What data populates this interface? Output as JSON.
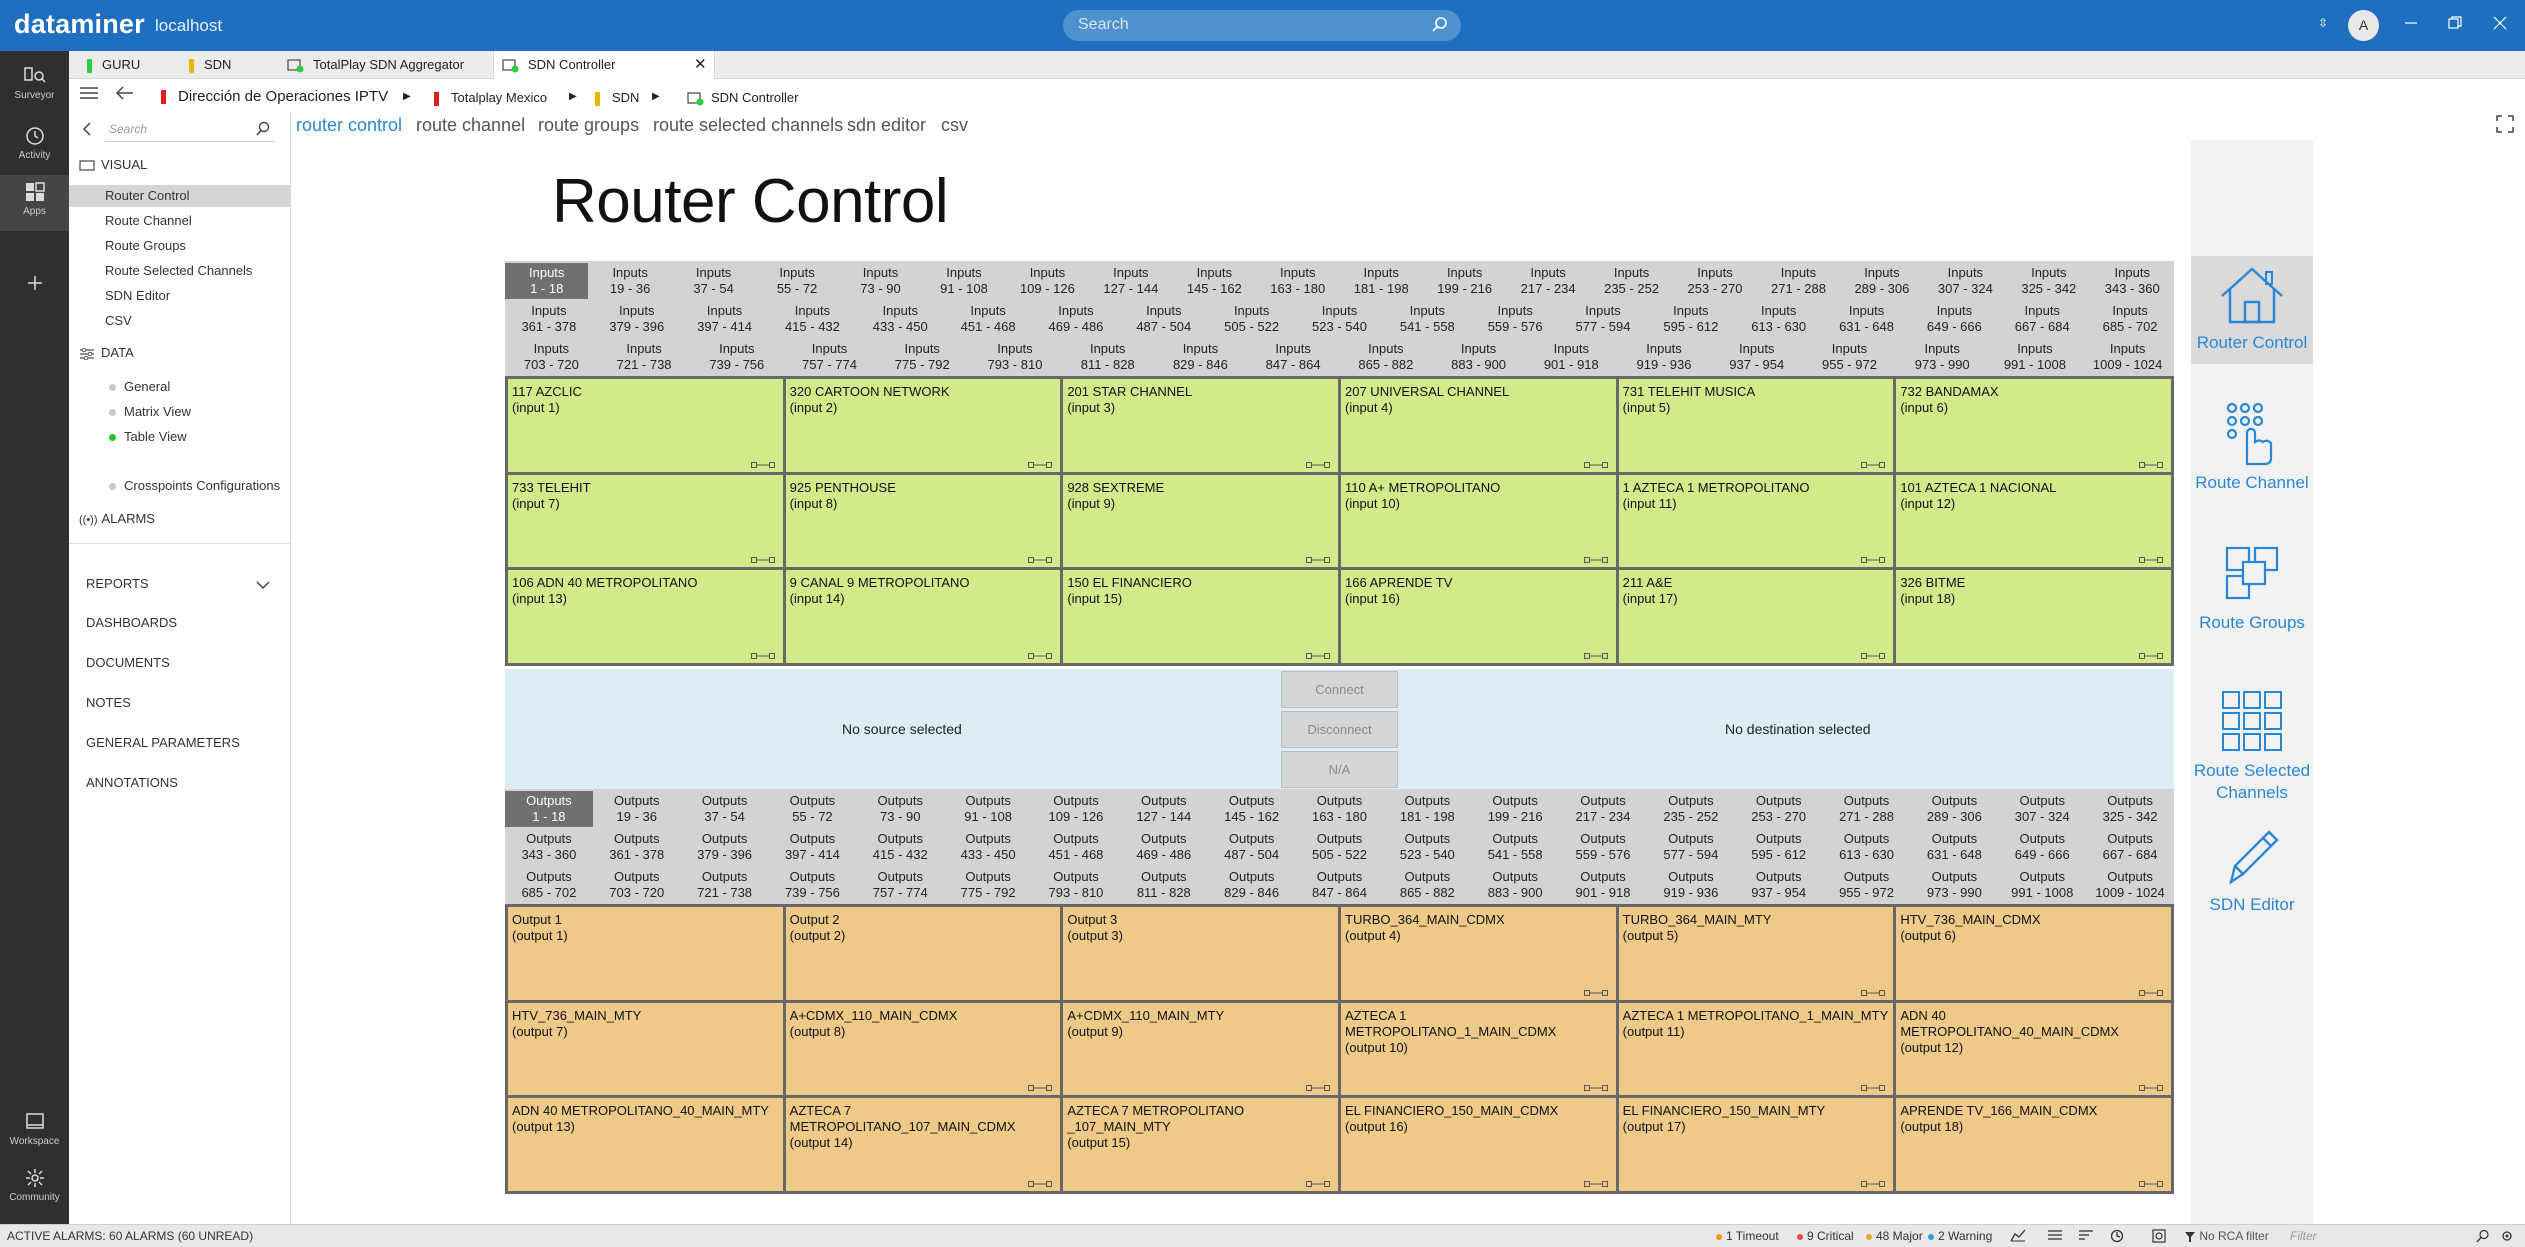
{
  "app": {
    "brand": "dataminer",
    "host": "localhost",
    "search_placeholder": "Search",
    "user_initial": "A"
  },
  "rail": {
    "items": [
      {
        "label": "Surveyor",
        "icon": "surveyor-icon"
      },
      {
        "label": "Activity",
        "icon": "activity-icon"
      },
      {
        "label": "Apps",
        "icon": "apps-icon"
      },
      {
        "label": "",
        "icon": "plus-icon"
      },
      {
        "label": "Workspace",
        "icon": "workspace-icon"
      },
      {
        "label": "Community",
        "icon": "community-icon"
      }
    ]
  },
  "tabs": [
    {
      "label": "GURU",
      "color": "#2ecc40"
    },
    {
      "label": "SDN",
      "color": "#e7b800"
    },
    {
      "label": "TotalPlay SDN Aggregator",
      "color": "#2ecc40"
    },
    {
      "label": "SDN Controller",
      "color": "#2ecc40",
      "active": true
    }
  ],
  "breadcrumb": [
    {
      "label": "Dirección de Operaciones IPTV",
      "color": "#d9231b"
    },
    {
      "label": "Totalplay Mexico",
      "color": "#d9231b"
    },
    {
      "label": "SDN",
      "color": "#e7b800"
    },
    {
      "label": "SDN Controller",
      "color": ""
    }
  ],
  "sidebar": {
    "search_placeholder": "Search",
    "visual_label": "VISUAL",
    "visual_items": [
      "Router Control",
      "Route Channel",
      "Route Groups",
      "Route Selected Channels",
      "SDN Editor",
      "CSV"
    ],
    "data_label": "DATA",
    "data_items": [
      "General",
      "Matrix View",
      "Table View",
      "Crosspoints Configurations"
    ],
    "alarms_label": "ALARMS",
    "sections": [
      "REPORTS",
      "DASHBOARDS",
      "DOCUMENTS",
      "NOTES",
      "GENERAL PARAMETERS",
      "ANNOTATIONS"
    ]
  },
  "page_tabs": [
    "router control",
    "route channel",
    "route groups",
    "route selected channels",
    "sdn editor",
    "csv"
  ],
  "title": "Router Control",
  "input_ranges": [
    [
      "1 - 18",
      "19 - 36",
      "37 - 54",
      "55 - 72",
      "73 - 90",
      "91 - 108",
      "109 - 126",
      "127 - 144",
      "145 - 162",
      "163 - 180",
      "181 - 198",
      "199 - 216",
      "217 - 234",
      "235 - 252",
      "253 - 270",
      "271 - 288",
      "289 - 306",
      "307 - 324",
      "325 - 342",
      "343 - 360"
    ],
    [
      "361 - 378",
      "379 - 396",
      "397 - 414",
      "415 - 432",
      "433 - 450",
      "451 - 468",
      "469 - 486",
      "487 - 504",
      "505 - 522",
      "523 - 540",
      "541 - 558",
      "559 - 576",
      "577 - 594",
      "595 - 612",
      "613 - 630",
      "631 - 648",
      "649 - 666",
      "667 - 684",
      "685 - 702"
    ],
    [
      "703 - 720",
      "721 - 738",
      "739 - 756",
      "757 - 774",
      "775 - 792",
      "793 - 810",
      "811 - 828",
      "829 - 846",
      "847 - 864",
      "865 - 882",
      "883 - 900",
      "901 - 918",
      "919 - 936",
      "937 - 954",
      "955 - 972",
      "973 - 990",
      "991 - 1008",
      "1009 - 1024"
    ]
  ],
  "output_ranges": [
    [
      "1 - 18",
      "19 - 36",
      "37 - 54",
      "55 - 72",
      "73 - 90",
      "91 - 108",
      "109 - 126",
      "127 - 144",
      "145 - 162",
      "163 - 180",
      "181 - 198",
      "199 - 216",
      "217 - 234",
      "235 - 252",
      "253 - 270",
      "271 - 288",
      "289 - 306",
      "307 - 324",
      "325 - 342"
    ],
    [
      "343 - 360",
      "361 - 378",
      "379 - 396",
      "397 - 414",
      "415 - 432",
      "433 - 450",
      "451 - 468",
      "469 - 486",
      "487 - 504",
      "505 - 522",
      "523 - 540",
      "541 - 558",
      "559 - 576",
      "577 - 594",
      "595 - 612",
      "613 - 630",
      "631 - 648",
      "649 - 666",
      "667 - 684"
    ],
    [
      "685 - 702",
      "703 - 720",
      "721 - 738",
      "739 - 756",
      "757 - 774",
      "775 - 792",
      "793 - 810",
      "811 - 828",
      "829 - 846",
      "847 - 864",
      "865 - 882",
      "883 - 900",
      "901 - 918",
      "919 - 936",
      "937 - 954",
      "955 - 972",
      "973 - 990",
      "991 - 1008",
      "1009 - 1024"
    ]
  ],
  "inputs_label": "Inputs",
  "outputs_label": "Outputs",
  "inputs": [
    {
      "name": "117 AZCLIC",
      "sub": "(input 1)"
    },
    {
      "name": "320 CARTOON NETWORK",
      "sub": "(input 2)"
    },
    {
      "name": "201 STAR CHANNEL",
      "sub": "(input 3)"
    },
    {
      "name": "207 UNIVERSAL CHANNEL",
      "sub": "(input 4)"
    },
    {
      "name": "731 TELEHIT MUSICA",
      "sub": "(input 5)"
    },
    {
      "name": "732 BANDAMAX",
      "sub": "(input 6)"
    },
    {
      "name": "733 TELEHIT",
      "sub": "(input 7)"
    },
    {
      "name": "925 PENTHOUSE",
      "sub": "(input 8)"
    },
    {
      "name": "928 SEXTREME",
      "sub": "(input 9)"
    },
    {
      "name": "110 A+ METROPOLITANO",
      "sub": "(input 10)"
    },
    {
      "name": "1 AZTECA 1 METROPOLITANO",
      "sub": "(input 11)"
    },
    {
      "name": "101 AZTECA 1 NACIONAL",
      "sub": "(input 12)"
    },
    {
      "name": "106 ADN 40 METROPOLITANO",
      "sub": "(input 13)"
    },
    {
      "name": "9 CANAL 9 METROPOLITANO",
      "sub": "(input 14)"
    },
    {
      "name": "150 EL FINANCIERO",
      "sub": "(input 15)"
    },
    {
      "name": "166 APRENDE TV",
      "sub": "(input 16)"
    },
    {
      "name": "211 A&E",
      "sub": "(input 17)"
    },
    {
      "name": "326 BITME",
      "sub": "(input 18)"
    }
  ],
  "selection": {
    "source": "No source selected",
    "destination": "No destination selected",
    "connect": "Connect",
    "disconnect": "Disconnect",
    "na": "N/A"
  },
  "outputs": [
    {
      "name": "Output 1",
      "sub": "(output 1)",
      "conn": false
    },
    {
      "name": "Output 2",
      "sub": "(output 2)",
      "conn": false
    },
    {
      "name": "Output 3",
      "sub": "(output 3)",
      "conn": false
    },
    {
      "name": "TURBO_364_MAIN_CDMX",
      "sub": "(output 4)",
      "conn": true
    },
    {
      "name": "TURBO_364_MAIN_MTY",
      "sub": "(output 5)",
      "conn": true
    },
    {
      "name": "HTV_736_MAIN_CDMX",
      "sub": "(output 6)",
      "conn": true
    },
    {
      "name": "HTV_736_MAIN_MTY",
      "sub": "(output 7)",
      "conn": false
    },
    {
      "name": "A+CDMX_110_MAIN_CDMX",
      "sub": "(output 8)",
      "conn": true
    },
    {
      "name": "A+CDMX_110_MAIN_MTY",
      "sub": "(output 9)",
      "conn": true
    },
    {
      "name": "AZTECA 1 METROPOLITANO_1_MAIN_CDMX",
      "sub": "(output 10)",
      "conn": true
    },
    {
      "name": "AZTECA 1 METROPOLITANO_1_MAIN_MTY",
      "sub": "(output 11)",
      "conn": true
    },
    {
      "name": "ADN 40 METROPOLITANO_40_MAIN_CDMX",
      "sub": "(output 12)",
      "conn": true
    },
    {
      "name": "ADN 40 METROPOLITANO_40_MAIN_MTY",
      "sub": "(output 13)",
      "conn": false
    },
    {
      "name": "AZTECA 7 METROPOLITANO_107_MAIN_CDMX",
      "sub": "(output 14)",
      "conn": true
    },
    {
      "name": "AZTECA 7 METROPOLITANO _107_MAIN_MTY",
      "sub": "(output 15)",
      "conn": true
    },
    {
      "name": "EL FINANCIERO_150_MAIN_CDMX",
      "sub": "(output 16)",
      "conn": true
    },
    {
      "name": "EL FINANCIERO_150_MAIN_MTY",
      "sub": "(output 17)",
      "conn": true
    },
    {
      "name": "APRENDE TV_166_MAIN_CDMX",
      "sub": "(output 18)",
      "conn": true
    }
  ],
  "quick_panel": [
    {
      "label": "Router Control",
      "icon": "home-icon"
    },
    {
      "label": "Route Channel",
      "icon": "route-channel-icon"
    },
    {
      "label": "Route Groups",
      "icon": "route-groups-icon"
    },
    {
      "label": "Route Selected Channels",
      "icon": "route-selected-channels-icon"
    },
    {
      "label": "SDN Editor",
      "icon": "pencil-icon"
    }
  ],
  "status": {
    "alarms": "ACTIVE ALARMS: 60 ALARMS (60 UNREAD)",
    "timeout": "1 Timeout",
    "critical": "9 Critical",
    "major": "48 Major",
    "warning": "2 Warning",
    "rca": "No RCA filter",
    "filter_placeholder": "Filter"
  },
  "colors": {
    "accent": "#2a87d6",
    "topbar": "#1e6fbf",
    "input_card": "#d3ea8b",
    "output_card": "#efc988"
  }
}
